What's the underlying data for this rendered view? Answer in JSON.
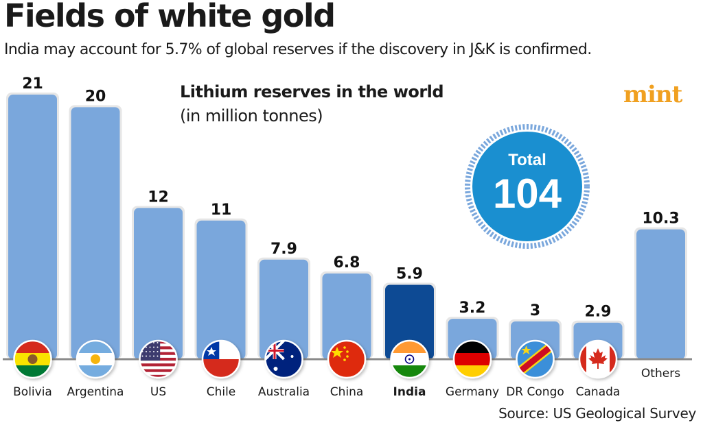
{
  "header": {
    "title": "Fields of white gold",
    "subtitle": "India may account for 5.7% of global reserves if the discovery in J&K is confirmed."
  },
  "logo": {
    "text": "mint",
    "color": "#f0a020"
  },
  "total_badge": {
    "label": "Total",
    "value": "104",
    "color": "#1a8fd0"
  },
  "source": "Source: US Geological Survey",
  "colors": {
    "bar": "#7aa7dc",
    "bar_highlight": "#0d4a94",
    "baseline": "#8a8a8a"
  },
  "chart_data": {
    "type": "bar",
    "title": "Lithium reserves in the world",
    "subtitle": "(in million tonnes)",
    "xlabel": "",
    "ylabel": "",
    "ylim": [
      0,
      21
    ],
    "grid": false,
    "categories": [
      "Bolivia",
      "Argentina",
      "US",
      "Chile",
      "Australia",
      "China",
      "India",
      "Germany",
      "DR Congo",
      "Canada",
      "Others"
    ],
    "values": [
      21,
      20,
      12,
      11,
      7.9,
      6.8,
      5.9,
      3.2,
      3,
      2.9,
      10.3
    ],
    "value_labels": [
      "21",
      "20",
      "12",
      "11",
      "7.9",
      "6.8",
      "5.9",
      "3.2",
      "3",
      "2.9",
      "10.3"
    ],
    "highlight": "India",
    "flags": [
      "bolivia-flag",
      "argentina-flag",
      "us-flag",
      "chile-flag",
      "australia-flag",
      "china-flag",
      "india-flag",
      "germany-flag",
      "dr-congo-flag",
      "canada-flag",
      null
    ]
  }
}
